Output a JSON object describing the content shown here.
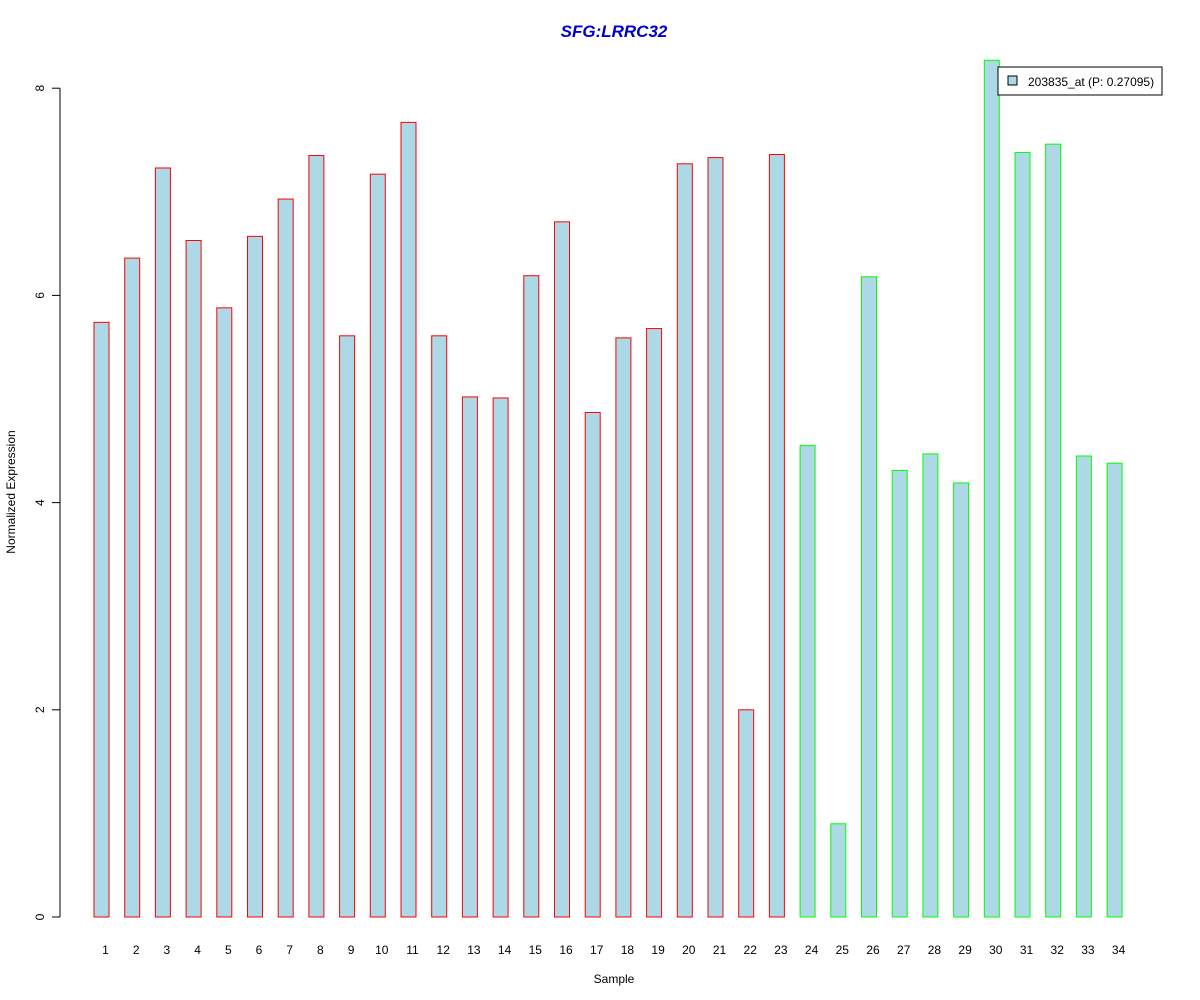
{
  "chart_data": {
    "type": "bar",
    "title": "SFG:LRRC32",
    "xlabel": "Sample",
    "ylabel": "Normalized Expression",
    "ylim": [
      0,
      8.3
    ],
    "yticks": [
      0,
      2,
      4,
      6,
      8
    ],
    "categories": [
      "1",
      "2",
      "3",
      "4",
      "5",
      "6",
      "7",
      "8",
      "9",
      "10",
      "11",
      "12",
      "13",
      "14",
      "15",
      "16",
      "17",
      "18",
      "19",
      "20",
      "21",
      "22",
      "23",
      "24",
      "25",
      "26",
      "27",
      "28",
      "29",
      "30",
      "31",
      "32",
      "33",
      "34"
    ],
    "series": [
      {
        "name": "203835_at (P: 0.27095)",
        "values": [
          5.74,
          6.36,
          7.23,
          6.53,
          5.88,
          6.57,
          6.93,
          7.35,
          5.61,
          7.17,
          7.67,
          5.61,
          5.02,
          5.01,
          6.19,
          6.71,
          4.87,
          5.59,
          5.68,
          7.27,
          7.33,
          2.0,
          7.36,
          4.55,
          0.9,
          6.18,
          4.31,
          4.47,
          4.19,
          8.27,
          7.38,
          7.46,
          4.45,
          4.38
        ],
        "group": [
          "a",
          "a",
          "a",
          "a",
          "a",
          "a",
          "a",
          "a",
          "a",
          "a",
          "a",
          "a",
          "a",
          "a",
          "a",
          "a",
          "a",
          "a",
          "a",
          "a",
          "a",
          "a",
          "a",
          "b",
          "b",
          "b",
          "b",
          "b",
          "b",
          "b",
          "b",
          "b",
          "b",
          "b"
        ]
      }
    ],
    "legend_position": "top-right",
    "grid": false,
    "colors": {
      "bar_fill": "#add8e6",
      "group_a_border": "#ff0000",
      "group_b_border": "#00ff00",
      "title": "#0000cd"
    }
  }
}
